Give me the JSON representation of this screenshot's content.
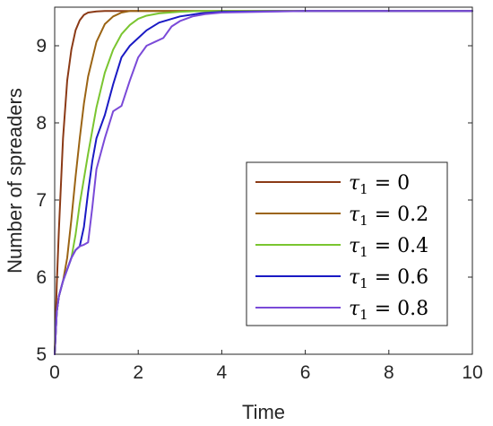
{
  "chart_data": {
    "type": "line",
    "xlabel": "Time",
    "ylabel": "Number of spreaders",
    "xlim": [
      0,
      10
    ],
    "ylim": [
      5,
      9.5
    ],
    "xticks": [
      "0",
      "2",
      "4",
      "6",
      "8",
      "10"
    ],
    "yticks": [
      "5",
      "6",
      "7",
      "8",
      "9"
    ],
    "grid": false,
    "legend_position": "right",
    "legend_symbol": "τ",
    "legend_subscript": "1",
    "series": [
      {
        "name": "τ1 = 0",
        "value_label": "= 0",
        "color": "#8b3a16",
        "x": [
          0,
          0.05,
          0.1,
          0.2,
          0.3,
          0.4,
          0.5,
          0.6,
          0.7,
          0.8,
          1.0,
          1.2,
          1.4,
          1.6,
          2,
          3,
          4,
          6,
          8,
          10
        ],
        "y": [
          5,
          5.9,
          6.6,
          7.8,
          8.55,
          8.95,
          9.2,
          9.33,
          9.4,
          9.43,
          9.445,
          9.45,
          9.45,
          9.45,
          9.45,
          9.45,
          9.45,
          9.45,
          9.45,
          9.45
        ]
      },
      {
        "name": "τ1 = 0.2",
        "value_label": "= 0.2",
        "color": "#9b6414",
        "x": [
          0,
          0.05,
          0.1,
          0.2,
          0.3,
          0.4,
          0.5,
          0.6,
          0.7,
          0.8,
          1.0,
          1.2,
          1.4,
          1.6,
          1.8,
          2,
          3,
          4,
          6,
          8,
          10
        ],
        "y": [
          5,
          5.55,
          5.75,
          5.95,
          6.25,
          6.75,
          7.3,
          7.8,
          8.25,
          8.6,
          9.05,
          9.28,
          9.38,
          9.43,
          9.45,
          9.45,
          9.45,
          9.45,
          9.45,
          9.45,
          9.45
        ]
      },
      {
        "name": "τ1 = 0.4",
        "value_label": "= 0.4",
        "color": "#7ac530",
        "x": [
          0,
          0.05,
          0.1,
          0.2,
          0.3,
          0.4,
          0.5,
          0.6,
          0.8,
          1.0,
          1.2,
          1.4,
          1.6,
          1.8,
          2.0,
          2.2,
          2.5,
          3,
          3.5,
          4,
          6,
          8,
          10
        ],
        "y": [
          5,
          5.55,
          5.75,
          5.95,
          6.1,
          6.25,
          6.55,
          6.95,
          7.6,
          8.2,
          8.65,
          8.95,
          9.15,
          9.27,
          9.35,
          9.39,
          9.42,
          9.44,
          9.45,
          9.45,
          9.45,
          9.45,
          9.45
        ]
      },
      {
        "name": "τ1 = 0.6",
        "value_label": "= 0.6",
        "color": "#1a1ac4",
        "x": [
          0,
          0.05,
          0.1,
          0.2,
          0.3,
          0.4,
          0.5,
          0.6,
          0.7,
          0.8,
          0.9,
          1.0,
          1.2,
          1.4,
          1.6,
          1.8,
          2.0,
          2.2,
          2.5,
          3,
          3.5,
          4,
          6,
          8,
          10
        ],
        "y": [
          5,
          5.55,
          5.75,
          5.95,
          6.1,
          6.25,
          6.35,
          6.4,
          6.65,
          7.1,
          7.5,
          7.8,
          8.1,
          8.5,
          8.85,
          9.0,
          9.1,
          9.2,
          9.3,
          9.38,
          9.42,
          9.44,
          9.45,
          9.45,
          9.45
        ]
      },
      {
        "name": "τ1 = 0.8",
        "value_label": "= 0.8",
        "color": "#7a4ad8",
        "x": [
          0,
          0.05,
          0.1,
          0.2,
          0.3,
          0.4,
          0.5,
          0.6,
          0.7,
          0.8,
          0.9,
          1.0,
          1.2,
          1.4,
          1.6,
          1.8,
          2.0,
          2.2,
          2.4,
          2.6,
          2.8,
          3.0,
          3.3,
          3.6,
          4,
          5,
          6,
          8,
          10
        ],
        "y": [
          5,
          5.55,
          5.75,
          5.95,
          6.1,
          6.25,
          6.35,
          6.4,
          6.42,
          6.45,
          6.9,
          7.4,
          7.8,
          8.15,
          8.22,
          8.55,
          8.85,
          9.0,
          9.05,
          9.1,
          9.25,
          9.32,
          9.38,
          9.41,
          9.43,
          9.44,
          9.45,
          9.45,
          9.45
        ]
      }
    ]
  }
}
